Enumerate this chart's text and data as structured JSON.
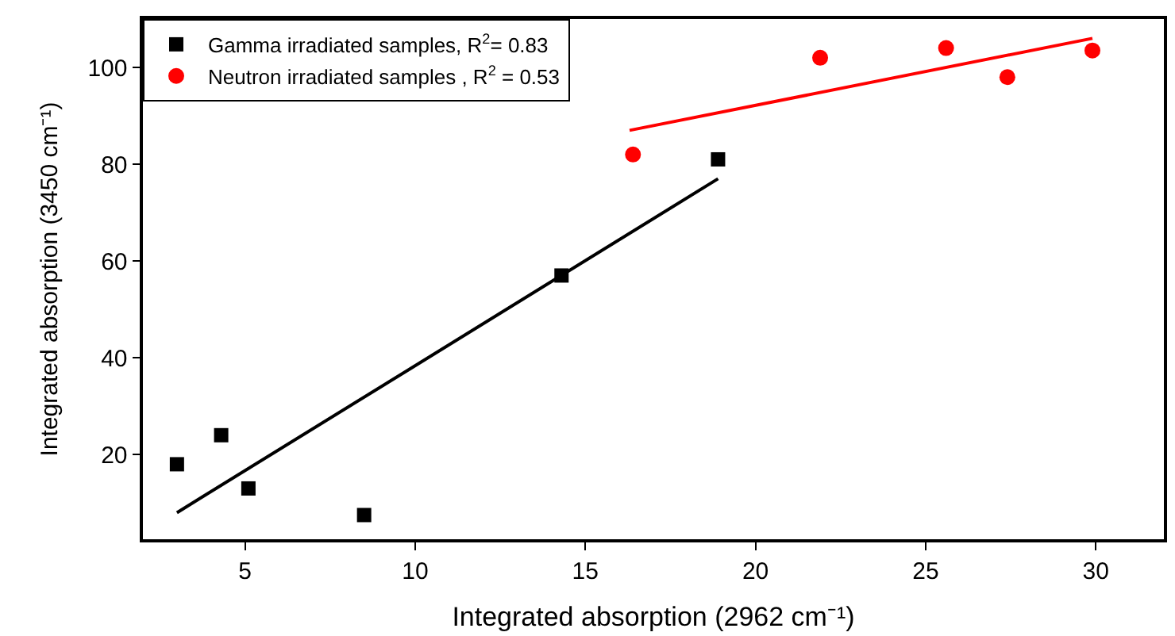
{
  "chart_data": {
    "type": "scatter",
    "xlabel": "Integrated absorption (2962 cm⁻¹)",
    "ylabel": "Integrated absorption (3450 cm⁻¹)",
    "xlim": [
      2,
      32
    ],
    "xticks": [
      5,
      10,
      15,
      20,
      25,
      30
    ],
    "ylim": [
      2.5,
      110
    ],
    "yticks": [
      20,
      40,
      60,
      80,
      100
    ],
    "legend": "top left",
    "series": [
      {
        "name": "Gamma irradiated samples, R$^{2}$= 0.83",
        "color": "#000000",
        "marker": "square",
        "x": [
          3.0,
          4.3,
          5.1,
          8.5,
          14.3,
          18.9
        ],
        "values": [
          18,
          24,
          13,
          7.5,
          57,
          81
        ]
      },
      {
        "name": "Neutron irradiated samples , R$^{2}$ = 0.53",
        "color": "#ff0000",
        "marker": "circle",
        "x": [
          16.4,
          21.9,
          25.6,
          27.4,
          29.9
        ],
        "values": [
          82,
          102,
          104,
          98,
          103.5
        ]
      },
      {
        "type": "line",
        "color": "#000000",
        "x": [
          3.0,
          18.9
        ],
        "values": [
          8,
          77
        ]
      },
      {
        "type": "line",
        "color": "#ff0000",
        "x": [
          16.3,
          29.9
        ],
        "values": [
          87,
          106
        ]
      }
    ]
  }
}
